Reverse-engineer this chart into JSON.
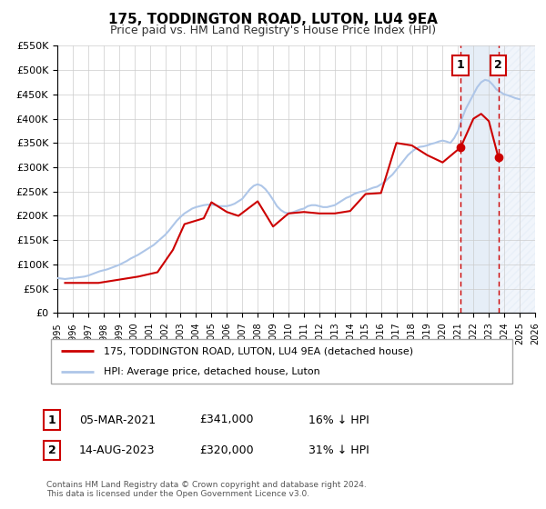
{
  "title": "175, TODDINGTON ROAD, LUTON, LU4 9EA",
  "subtitle": "Price paid vs. HM Land Registry's House Price Index (HPI)",
  "xlim": [
    1995,
    2026
  ],
  "ylim": [
    0,
    550000
  ],
  "yticks": [
    0,
    50000,
    100000,
    150000,
    200000,
    250000,
    300000,
    350000,
    400000,
    450000,
    500000,
    550000
  ],
  "ytick_labels": [
    "£0",
    "£50K",
    "£100K",
    "£150K",
    "£200K",
    "£250K",
    "£300K",
    "£350K",
    "£400K",
    "£450K",
    "£500K",
    "£550K"
  ],
  "xticks": [
    1995,
    1996,
    1997,
    1998,
    1999,
    2000,
    2001,
    2002,
    2003,
    2004,
    2005,
    2006,
    2007,
    2008,
    2009,
    2010,
    2011,
    2012,
    2013,
    2014,
    2015,
    2016,
    2017,
    2018,
    2019,
    2020,
    2021,
    2022,
    2023,
    2024,
    2025,
    2026
  ],
  "plot_bg_color": "#ffffff",
  "grid_color": "#cccccc",
  "hpi_color": "#aec6e8",
  "price_color": "#cc0000",
  "vline1_x": 2021.17,
  "vline2_x": 2023.62,
  "marker1_price": 341000,
  "marker2_price": 320000,
  "shade1_start": 2021.17,
  "shade1_end": 2023.62,
  "shade2_start": 2023.62,
  "shade2_end": 2026,
  "legend_label_red": "175, TODDINGTON ROAD, LUTON, LU4 9EA (detached house)",
  "legend_label_blue": "HPI: Average price, detached house, Luton",
  "annotation1_label": "1",
  "annotation1_date": "05-MAR-2021",
  "annotation1_price": "£341,000",
  "annotation1_hpi": "16% ↓ HPI",
  "annotation2_label": "2",
  "annotation2_date": "14-AUG-2023",
  "annotation2_price": "£320,000",
  "annotation2_hpi": "31% ↓ HPI",
  "footer1": "Contains HM Land Registry data © Crown copyright and database right 2024.",
  "footer2": "This data is licensed under the Open Government Licence v3.0.",
  "hpi_x": [
    1995.0,
    1995.25,
    1995.5,
    1995.75,
    1996.0,
    1996.25,
    1996.5,
    1996.75,
    1997.0,
    1997.25,
    1997.5,
    1997.75,
    1998.0,
    1998.25,
    1998.5,
    1998.75,
    1999.0,
    1999.25,
    1999.5,
    1999.75,
    2000.0,
    2000.25,
    2000.5,
    2000.75,
    2001.0,
    2001.25,
    2001.5,
    2001.75,
    2002.0,
    2002.25,
    2002.5,
    2002.75,
    2003.0,
    2003.25,
    2003.5,
    2003.75,
    2004.0,
    2004.25,
    2004.5,
    2004.75,
    2005.0,
    2005.25,
    2005.5,
    2005.75,
    2006.0,
    2006.25,
    2006.5,
    2006.75,
    2007.0,
    2007.25,
    2007.5,
    2007.75,
    2008.0,
    2008.25,
    2008.5,
    2008.75,
    2009.0,
    2009.25,
    2009.5,
    2009.75,
    2010.0,
    2010.25,
    2010.5,
    2010.75,
    2011.0,
    2011.25,
    2011.5,
    2011.75,
    2012.0,
    2012.25,
    2012.5,
    2012.75,
    2013.0,
    2013.25,
    2013.5,
    2013.75,
    2014.0,
    2014.25,
    2014.5,
    2014.75,
    2015.0,
    2015.25,
    2015.5,
    2015.75,
    2016.0,
    2016.25,
    2016.5,
    2016.75,
    2017.0,
    2017.25,
    2017.5,
    2017.75,
    2018.0,
    2018.25,
    2018.5,
    2018.75,
    2019.0,
    2019.25,
    2019.5,
    2019.75,
    2020.0,
    2020.25,
    2020.5,
    2020.75,
    2021.0,
    2021.25,
    2021.5,
    2021.75,
    2022.0,
    2022.25,
    2022.5,
    2022.75,
    2023.0,
    2023.25,
    2023.5,
    2023.75,
    2024.0,
    2024.25,
    2024.5,
    2024.75,
    2025.0
  ],
  "hpi_y": [
    72000,
    71000,
    70000,
    71000,
    72000,
    73000,
    74000,
    75000,
    77000,
    80000,
    83000,
    86000,
    88000,
    90000,
    93000,
    96000,
    99000,
    103000,
    107000,
    112000,
    116000,
    120000,
    125000,
    130000,
    135000,
    140000,
    147000,
    154000,
    161000,
    170000,
    180000,
    190000,
    198000,
    205000,
    210000,
    215000,
    218000,
    220000,
    222000,
    223000,
    223000,
    222000,
    220000,
    220000,
    220000,
    222000,
    225000,
    230000,
    235000,
    245000,
    255000,
    262000,
    265000,
    262000,
    255000,
    245000,
    233000,
    220000,
    212000,
    207000,
    205000,
    207000,
    210000,
    213000,
    215000,
    220000,
    222000,
    222000,
    220000,
    218000,
    218000,
    220000,
    222000,
    227000,
    232000,
    237000,
    240000,
    245000,
    248000,
    250000,
    252000,
    255000,
    258000,
    260000,
    265000,
    270000,
    278000,
    285000,
    295000,
    305000,
    315000,
    325000,
    332000,
    338000,
    342000,
    343000,
    345000,
    348000,
    350000,
    353000,
    355000,
    353000,
    350000,
    360000,
    375000,
    400000,
    420000,
    435000,
    450000,
    465000,
    475000,
    480000,
    478000,
    470000,
    460000,
    455000,
    450000,
    448000,
    445000,
    442000,
    440000
  ],
  "price_x": [
    1995.5,
    1997.67,
    2000.25,
    2001.5,
    2002.5,
    2003.25,
    2004.5,
    2005.0,
    2006.0,
    2006.75,
    2008.0,
    2009.0,
    2010.0,
    2011.0,
    2012.0,
    2013.0,
    2014.0,
    2015.0,
    2016.0,
    2017.0,
    2018.0,
    2019.0,
    2020.0,
    2021.17,
    2022.0,
    2022.5,
    2023.0,
    2023.62
  ],
  "price_y": [
    62000,
    62000,
    75000,
    84000,
    130000,
    183000,
    195000,
    228000,
    208000,
    200000,
    230000,
    178000,
    205000,
    208000,
    205000,
    205000,
    210000,
    245000,
    247000,
    350000,
    345000,
    325000,
    310000,
    341000,
    400000,
    410000,
    395000,
    320000
  ]
}
